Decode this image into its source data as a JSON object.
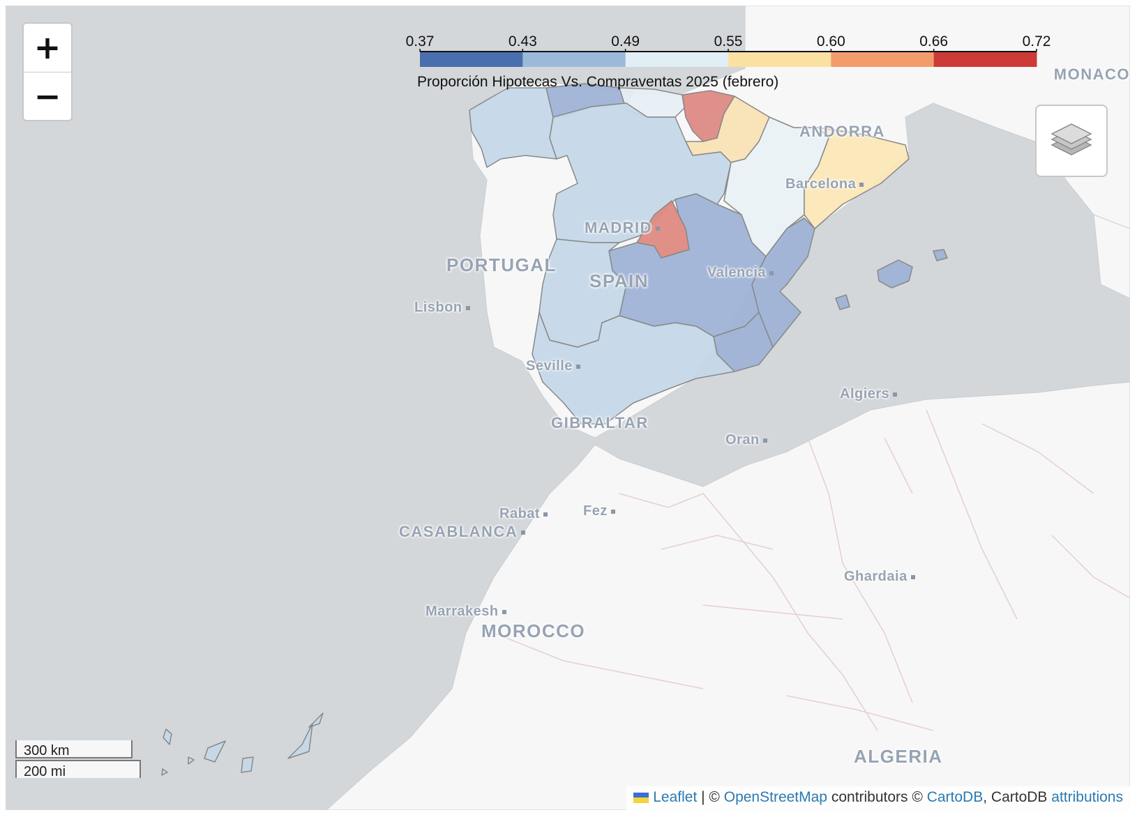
{
  "zoom": {
    "in_label": "+",
    "out_label": "−"
  },
  "legend": {
    "ticks": [
      "0.37",
      "0.43",
      "0.49",
      "0.55",
      "0.60",
      "0.66",
      "0.72"
    ],
    "colors": [
      "#4a6fae",
      "#9bbad9",
      "#e2eef5",
      "#fbe1a1",
      "#f29c6c",
      "#cc3b38"
    ],
    "caption": "Proporción Hipotecas Vs. Compraventas 2025 (febrero)"
  },
  "map_labels": {
    "monaco": "MONACO",
    "andorra": "ANDORRA",
    "barcelona": "Barcelona",
    "madrid": "MADRID",
    "portugal": "PORTUGAL",
    "spain": "SPAIN",
    "valencia": "Valencia",
    "lisbon": "Lisbon",
    "seville": "Seville",
    "gibraltar": "GIBRALTAR",
    "algiers": "Algiers",
    "oran": "Oran",
    "rabat": "Rabat",
    "fez": "Fez",
    "casablanca": "CASABLANCA",
    "ghardaia": "Ghardaia",
    "marrakesh": "Marrakesh",
    "morocco": "MOROCCO",
    "algeria": "ALGERIA"
  },
  "region_colors": {
    "galicia": "#c5d8e8",
    "asturias_cantabria": "#9fb3d6",
    "pais_vasco_coast": "#e7eff5",
    "navarra": "#dd8a84",
    "la_rioja": "#f9e3b5",
    "castilla_leon": "#c5d8e8",
    "aragon": "#e9f1f6",
    "cataluna": "#fbe7b7",
    "madrid": "#de8a80",
    "castilla_la_mancha": "#9fb3d6",
    "extremadura": "#c5d8e8",
    "valencia": "#9fb3d6",
    "murcia": "#9fb3d6",
    "andalucia": "#c5d8e8",
    "baleares": "#9fb3d6",
    "canarias": "#c5d8e8"
  },
  "scale": {
    "km": "300 km",
    "mi": "200 mi"
  },
  "attribution": {
    "leaflet": "Leaflet",
    "sep1": " | © ",
    "osm": "OpenStreetMap",
    "contrib": " contributors © ",
    "cartodb": "CartoDB",
    "tail": ", CartoDB ",
    "attributions": "attributions"
  }
}
